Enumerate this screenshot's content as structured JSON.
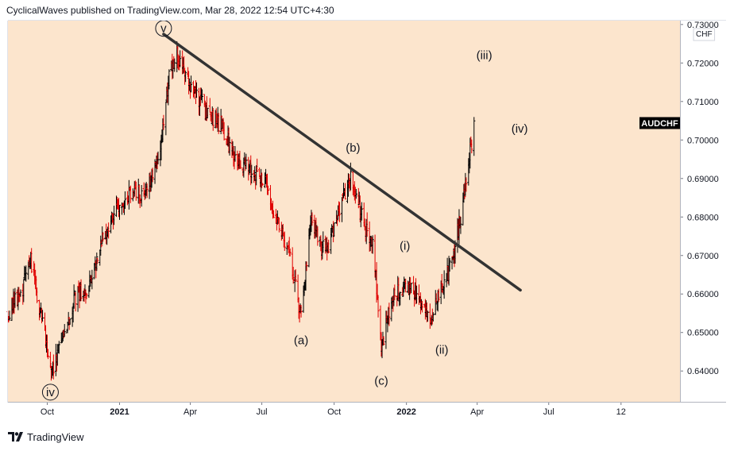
{
  "header": {
    "attribution": "CyclicalWaves published on TradingView.com, Mar 28, 2022 12:54 UTC+4:30"
  },
  "footer": {
    "brand": "TradingView",
    "logo_icon": "tradingview-logo-icon"
  },
  "colors": {
    "plot_background": "#FCE5CD",
    "bar_up": "#000000",
    "bar_down": "#E00000",
    "trendline": "#333333",
    "symbol_badge_bg": "#000000",
    "symbol_badge_text": "#FFFFFF"
  },
  "chart_data": {
    "type": "ohlc-bar",
    "symbol": "AUDCHF",
    "currency": "CHF",
    "price_axis": {
      "min": 0.632,
      "max": 0.731,
      "ticks": [
        "0.64000",
        "0.65000",
        "0.66000",
        "0.67000",
        "0.68000",
        "0.69000",
        "0.70000",
        "0.71000",
        "0.72000",
        "0.73000"
      ]
    },
    "time_axis": {
      "start": "2020-08-12",
      "end": "2022-12-15",
      "ticks": [
        {
          "label": "Oct",
          "date": "2020-10-01"
        },
        {
          "label": "2021",
          "date": "2021-01-01"
        },
        {
          "label": "Apr",
          "date": "2021-04-01"
        },
        {
          "label": "Jul",
          "date": "2021-07-01"
        },
        {
          "label": "Oct",
          "date": "2021-10-01"
        },
        {
          "label": "2022",
          "date": "2022-01-01"
        },
        {
          "label": "Apr",
          "date": "2022-04-01"
        },
        {
          "label": "Jul",
          "date": "2022-07-01"
        },
        {
          "label": "12",
          "date": "2022-10-01"
        }
      ]
    },
    "price_path": [
      [
        "2020-08-12",
        0.655
      ],
      [
        "2020-09-01",
        0.662
      ],
      [
        "2020-09-10",
        0.669
      ],
      [
        "2020-09-25",
        0.652
      ],
      [
        "2020-10-07",
        0.64
      ],
      [
        "2020-10-20",
        0.648
      ],
      [
        "2020-11-05",
        0.659
      ],
      [
        "2020-11-25",
        0.663
      ],
      [
        "2020-12-10",
        0.675
      ],
      [
        "2020-12-25",
        0.68
      ],
      [
        "2021-01-15",
        0.687
      ],
      [
        "2021-02-01",
        0.686
      ],
      [
        "2021-02-20",
        0.696
      ],
      [
        "2021-03-05",
        0.716
      ],
      [
        "2021-03-15",
        0.722
      ],
      [
        "2021-04-01",
        0.715
      ],
      [
        "2021-04-20",
        0.708
      ],
      [
        "2021-05-10",
        0.704
      ],
      [
        "2021-06-01",
        0.694
      ],
      [
        "2021-06-20",
        0.692
      ],
      [
        "2021-07-05",
        0.689
      ],
      [
        "2021-07-20",
        0.679
      ],
      [
        "2021-08-05",
        0.67
      ],
      [
        "2021-08-20",
        0.6545
      ],
      [
        "2021-09-01",
        0.68
      ],
      [
        "2021-09-20",
        0.67
      ],
      [
        "2021-10-05",
        0.68
      ],
      [
        "2021-10-22",
        0.69
      ],
      [
        "2021-11-05",
        0.68
      ],
      [
        "2021-11-20",
        0.672
      ],
      [
        "2021-11-30",
        0.646
      ],
      [
        "2021-12-15",
        0.66
      ],
      [
        "2022-01-05",
        0.662
      ],
      [
        "2022-01-20",
        0.658
      ],
      [
        "2022-01-30",
        0.652
      ],
      [
        "2022-02-15",
        0.662
      ],
      [
        "2022-02-28",
        0.668
      ],
      [
        "2022-03-10",
        0.679
      ],
      [
        "2022-03-20",
        0.693
      ],
      [
        "2022-03-28",
        0.703
      ]
    ],
    "last_price": 0.7045,
    "trendline": {
      "start": [
        "2021-02-26",
        0.7275
      ],
      "end": [
        "2022-05-26",
        0.661
      ]
    },
    "wave_labels": [
      {
        "text": "v",
        "date": "2021-02-26",
        "price": 0.729,
        "circled": true
      },
      {
        "text": "iv",
        "date": "2020-10-05",
        "price": 0.6345,
        "circled": true
      },
      {
        "text": "(a)",
        "date": "2021-08-20",
        "price": 0.648,
        "circled": false
      },
      {
        "text": "(b)",
        "date": "2021-10-25",
        "price": 0.698,
        "circled": false
      },
      {
        "text": "(c)",
        "date": "2021-11-30",
        "price": 0.6375,
        "circled": false
      },
      {
        "text": "(i)",
        "date": "2021-12-30",
        "price": 0.6725,
        "circled": false
      },
      {
        "text": "(ii)",
        "date": "2022-02-15",
        "price": 0.6455,
        "circled": false
      },
      {
        "text": "(iii)",
        "date": "2022-04-10",
        "price": 0.722,
        "circled": false
      },
      {
        "text": "(iv)",
        "date": "2022-05-25",
        "price": 0.703,
        "circled": false
      }
    ]
  }
}
